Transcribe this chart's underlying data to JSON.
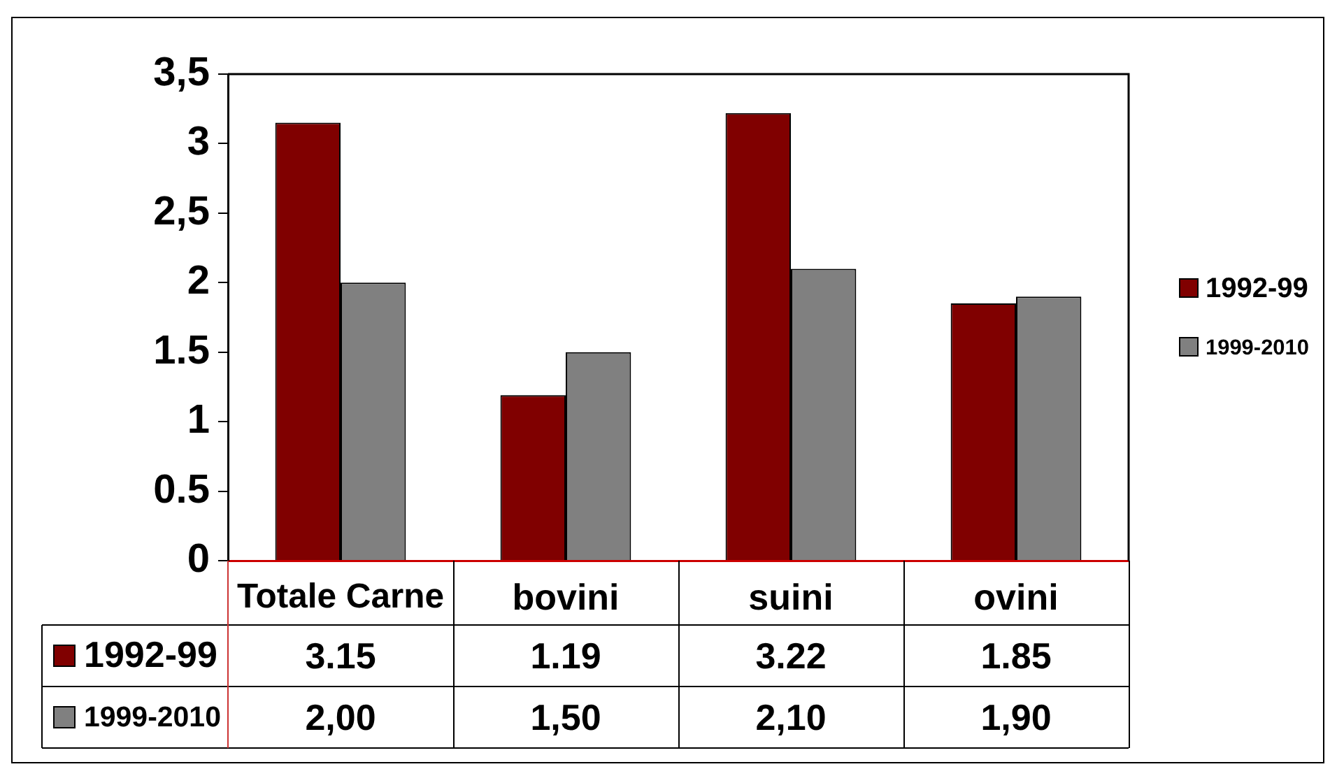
{
  "chart_data": {
    "type": "bar",
    "categories": [
      "Totale Carne",
      "bovini",
      "suini",
      "ovini"
    ],
    "series": [
      {
        "name": "1992-99",
        "color": "#800000",
        "values": [
          3.15,
          1.19,
          3.22,
          1.85
        ],
        "value_labels": [
          "3.15",
          "1.19",
          "3.22",
          "1.85"
        ]
      },
      {
        "name": "1999-2010",
        "color": "#808080",
        "values": [
          2.0,
          1.5,
          2.1,
          1.9
        ],
        "value_labels": [
          "2,00",
          "1,50",
          "2,10",
          "1,90"
        ]
      }
    ],
    "ylim": [
      0,
      3.5
    ],
    "yticks": [
      0,
      0.5,
      1,
      1.5,
      2,
      {
        "value": 2.5,
        "label": "2,5"
      },
      3,
      {
        "value": 3.5,
        "label": "3,5"
      }
    ],
    "legend": "right"
  }
}
